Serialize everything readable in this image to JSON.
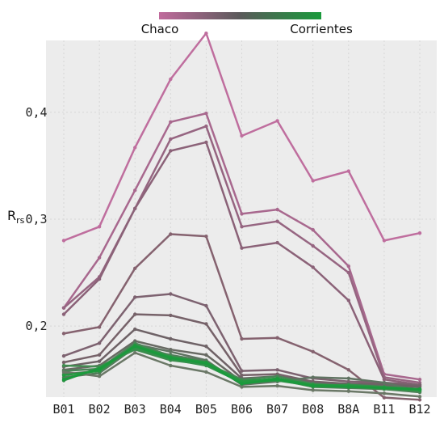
{
  "chart_data": {
    "type": "line",
    "categories": [
      "B01",
      "B02",
      "B03",
      "B04",
      "B05",
      "B06",
      "B07",
      "B08",
      "B8A",
      "B11",
      "B12"
    ],
    "ylabel": "R",
    "ylabel_sub": "rs",
    "ylim": [
      0.135,
      0.49
    ],
    "yticks": [
      0.2,
      0.3,
      0.4
    ],
    "ytick_labels": [
      "0,2",
      "0,3",
      "0,4"
    ],
    "grid": true,
    "colorbar": {
      "left_label": "Chaco",
      "right_label": "Corrientes",
      "colors": [
        "#c06a9c",
        "#1a9a3c"
      ]
    },
    "series": [
      {
        "color": "#bf6e9e",
        "values": [
          0.28,
          0.293,
          0.367,
          0.431,
          0.474,
          0.378,
          0.392,
          0.336,
          0.345,
          0.28,
          0.287
        ]
      },
      {
        "color": "#a8688e",
        "values": [
          0.217,
          0.264,
          0.327,
          0.391,
          0.399,
          0.305,
          0.309,
          0.29,
          0.256,
          0.155,
          0.15
        ]
      },
      {
        "color": "#966581",
        "values": [
          0.217,
          0.246,
          0.31,
          0.375,
          0.387,
          0.293,
          0.298,
          0.275,
          0.25,
          0.152,
          0.147
        ]
      },
      {
        "color": "#8b6278",
        "values": [
          0.211,
          0.244,
          0.31,
          0.364,
          0.372,
          0.273,
          0.278,
          0.255,
          0.224,
          0.15,
          0.145
        ]
      },
      {
        "color": "#85626f",
        "values": [
          0.193,
          0.199,
          0.254,
          0.286,
          0.284,
          0.188,
          0.189,
          0.176,
          0.159,
          0.133,
          0.131
        ]
      },
      {
        "color": "#7d6270",
        "values": [
          0.172,
          0.184,
          0.227,
          0.23,
          0.219,
          0.158,
          0.159,
          0.151,
          0.148,
          0.147,
          0.145
        ]
      },
      {
        "color": "#766269",
        "values": [
          0.166,
          0.173,
          0.211,
          0.21,
          0.202,
          0.154,
          0.155,
          0.148,
          0.146,
          0.146,
          0.144
        ]
      },
      {
        "color": "#6e6266",
        "values": [
          0.162,
          0.167,
          0.197,
          0.188,
          0.181,
          0.151,
          0.153,
          0.147,
          0.146,
          0.145,
          0.143
        ]
      },
      {
        "color": "#686a63",
        "values": [
          0.159,
          0.163,
          0.186,
          0.178,
          0.173,
          0.148,
          0.15,
          0.145,
          0.145,
          0.144,
          0.141
        ]
      },
      {
        "color": "#607362",
        "values": [
          0.155,
          0.158,
          0.183,
          0.176,
          0.168,
          0.145,
          0.148,
          0.152,
          0.151,
          0.147,
          0.139
        ]
      },
      {
        "color": "#527d5a",
        "values": [
          0.152,
          0.156,
          0.18,
          0.173,
          0.167,
          0.147,
          0.151,
          0.143,
          0.142,
          0.141,
          0.138
        ]
      },
      {
        "color": "#4b8458",
        "values": [
          0.158,
          0.16,
          0.184,
          0.172,
          0.165,
          0.15,
          0.153,
          0.146,
          0.144,
          0.142,
          0.14
        ]
      },
      {
        "color": "#438b51",
        "values": [
          0.163,
          0.162,
          0.178,
          0.168,
          0.164,
          0.149,
          0.15,
          0.143,
          0.143,
          0.141,
          0.139
        ]
      },
      {
        "color": "#6b7867",
        "values": [
          0.157,
          0.153,
          0.175,
          0.163,
          0.157,
          0.143,
          0.144,
          0.14,
          0.139,
          0.137,
          0.134
        ]
      },
      {
        "color": "#33914a",
        "values": [
          0.149,
          0.161,
          0.179,
          0.169,
          0.163,
          0.147,
          0.149,
          0.144,
          0.145,
          0.143,
          0.141
        ]
      },
      {
        "color": "#249940",
        "values": [
          0.154,
          0.158,
          0.182,
          0.171,
          0.166,
          0.148,
          0.151,
          0.145,
          0.144,
          0.142,
          0.14
        ]
      },
      {
        "color": "#1a9a3c",
        "values": [
          0.15,
          0.16,
          0.181,
          0.17,
          0.165,
          0.146,
          0.15,
          0.144,
          0.143,
          0.142,
          0.141
        ]
      }
    ]
  }
}
